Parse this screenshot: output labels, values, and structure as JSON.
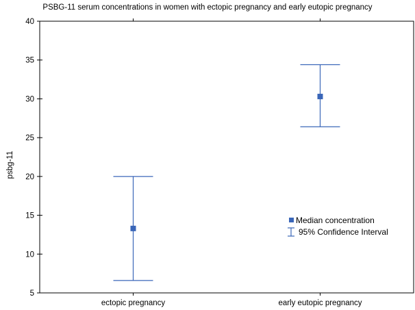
{
  "chart_data": {
    "type": "scatter",
    "title": "PSBG-11 serum concentrations in women with ectopic pregnancy and early eutopic pregnancy",
    "xlabel": "",
    "ylabel": "psbg-11",
    "ylim": [
      5,
      40
    ],
    "yticks": [
      5,
      10,
      15,
      20,
      25,
      30,
      35,
      40
    ],
    "categories": [
      "ectopic pregnancy",
      "early eutopic pregnancy"
    ],
    "series": [
      {
        "name": "Median concentration",
        "values": [
          13.3,
          30.3
        ]
      },
      {
        "name": "95% Confidence Interval",
        "lower": [
          6.6,
          26.4
        ],
        "upper": [
          20.0,
          34.4
        ]
      }
    ],
    "legend": {
      "position": "right-middle"
    },
    "grid": false,
    "colors": {
      "marker": "#3a66b8",
      "errorbar": "#3a66b8",
      "axis": "#000000"
    }
  }
}
